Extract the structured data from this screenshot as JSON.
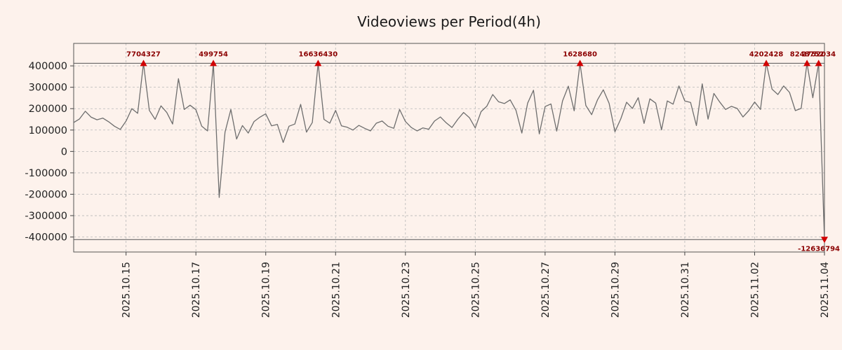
{
  "title": "Videoviews per Period(4h)",
  "colors": {
    "background": "#fdf2ec",
    "line": "#6e6e6e",
    "grid": "#b8b8b8",
    "frame": "#555555",
    "tick": "#444444",
    "tick_label": "#222222",
    "marker": "#d10000",
    "annotation": "#8b0000",
    "clip_line": "#555555",
    "title": "#1a1a1a"
  },
  "chart_data": {
    "type": "line",
    "title": "Videoviews per Period(4h)",
    "xlabel": "",
    "ylabel": "",
    "grid": true,
    "legend": "none",
    "ylim": [
      -470000,
      505000
    ],
    "y_clip": 412000,
    "y_ticks": [
      400000,
      300000,
      200000,
      100000,
      0,
      -100000,
      -200000,
      -300000,
      -400000
    ],
    "x_tick_labels": [
      "2025.10.15",
      "2025.10.17",
      "2025.10.19",
      "2025.10.21",
      "2025.10.23",
      "2025.10.25",
      "2025.10.27",
      "2025.10.29",
      "2025.10.31",
      "2025.11.02",
      "2025.11.04"
    ],
    "x_tick_indices": [
      9,
      21,
      33,
      45,
      57,
      69,
      81,
      93,
      105,
      117,
      129
    ],
    "values": [
      135000,
      152000,
      188000,
      160000,
      148000,
      156000,
      139000,
      118000,
      103000,
      142000,
      200000,
      178000,
      7704327,
      192000,
      150000,
      213000,
      182000,
      128000,
      340000,
      196000,
      216000,
      195000,
      118000,
      96000,
      499754,
      -215000,
      90000,
      196000,
      58000,
      121000,
      86000,
      140000,
      160000,
      176000,
      120000,
      126000,
      42000,
      118000,
      128000,
      220000,
      90000,
      135000,
      16636430,
      150000,
      132000,
      192000,
      120000,
      113000,
      100000,
      122000,
      108000,
      96000,
      132000,
      142000,
      118000,
      108000,
      196000,
      140000,
      112000,
      96000,
      110000,
      104000,
      142000,
      161000,
      134000,
      112000,
      150000,
      182000,
      158000,
      110000,
      186000,
      212000,
      266000,
      232000,
      224000,
      241000,
      192000,
      86000,
      226000,
      286000,
      82000,
      210000,
      222000,
      95000,
      236000,
      305000,
      190000,
      1628680,
      215000,
      172000,
      241000,
      288000,
      225000,
      92000,
      152000,
      230000,
      201000,
      251000,
      131000,
      246000,
      226000,
      101000,
      236000,
      221000,
      306000,
      236000,
      229000,
      121000,
      316000,
      151000,
      271000,
      231000,
      196000,
      211000,
      201000,
      161000,
      191000,
      231000,
      196000,
      4202428,
      291000,
      266000,
      306000,
      276000,
      191000,
      201000,
      8248752,
      251000,
      2752034,
      -12636794
    ],
    "annotations": [
      {
        "index": 12,
        "label": "7704327"
      },
      {
        "index": 24,
        "label": "499754"
      },
      {
        "index": 42,
        "label": "16636430"
      },
      {
        "index": 87,
        "label": "1628680"
      },
      {
        "index": 119,
        "label": "4202428"
      },
      {
        "index": 126,
        "label": "8248752"
      },
      {
        "index": 128,
        "label": "2752034"
      },
      {
        "index": 129,
        "label": "-12636794"
      }
    ]
  }
}
